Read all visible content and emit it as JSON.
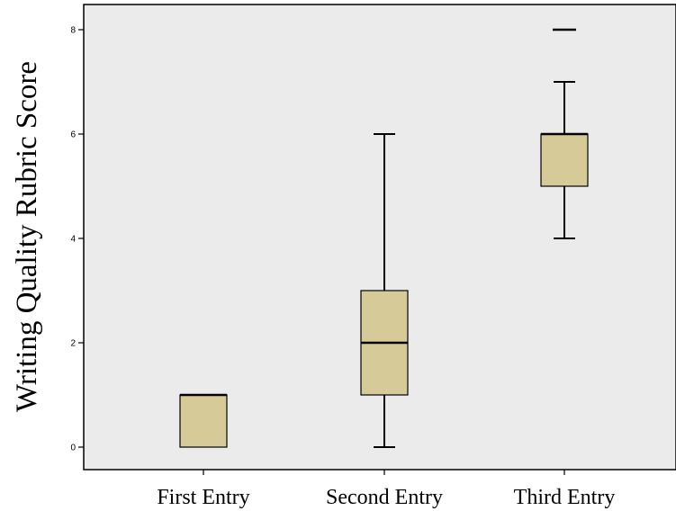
{
  "chart_data": {
    "type": "box",
    "title": "",
    "xlabel": "",
    "ylabel": "Writing Quality Rubric Score",
    "ylim": [
      -0.4,
      8.5
    ],
    "yticks": [
      0,
      2,
      4,
      6,
      8
    ],
    "ytick_labels": [
      "0",
      "2",
      "4",
      "6",
      "8"
    ],
    "grid": false,
    "colors": {
      "plot_background": "#ebebeb",
      "box_fill": "#d6cb98",
      "line": "#000000"
    },
    "categories": [
      "First Entry",
      "Second Entry",
      "Third Entry"
    ],
    "boxes": [
      {
        "category": "First Entry",
        "whisker_low": 0,
        "q1": 0,
        "median": 1,
        "q3": 1,
        "whisker_high": 1,
        "outliers": []
      },
      {
        "category": "Second Entry",
        "whisker_low": 0,
        "q1": 1,
        "median": 2,
        "q3": 3,
        "whisker_high": 6,
        "outliers": []
      },
      {
        "category": "Third Entry",
        "whisker_low": 4,
        "q1": 5,
        "median": 6,
        "q3": 6,
        "whisker_high": 7,
        "outliers": [
          8
        ]
      }
    ]
  }
}
